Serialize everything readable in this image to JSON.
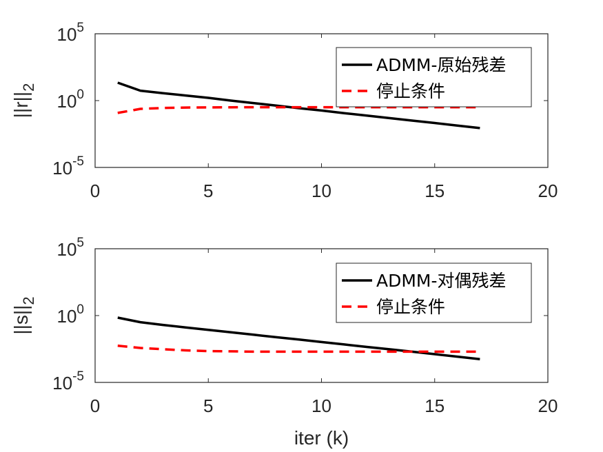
{
  "chart_data": [
    {
      "type": "line",
      "ylabel_main": "||r||",
      "ylabel_sub": "2",
      "xlabel": "",
      "xlim": [
        0,
        20
      ],
      "ylim": [
        1e-05,
        100000.0
      ],
      "yscale": "log",
      "xticks": [
        "0",
        "5",
        "10",
        "15",
        "20"
      ],
      "ytick_base": "10",
      "ytick_exponents": [
        "-5",
        "0",
        "5"
      ],
      "legend_position": "top-right",
      "series": [
        {
          "name": "ADMM-原始残差",
          "color": "#000000",
          "style": "solid",
          "x": [
            1,
            2,
            3,
            4,
            5,
            6,
            7,
            8,
            9,
            10,
            11,
            12,
            13,
            14,
            15,
            16,
            17
          ],
          "y": [
            22,
            5.5,
            3.6,
            2.4,
            1.6,
            1.0,
            0.65,
            0.42,
            0.27,
            0.18,
            0.115,
            0.075,
            0.049,
            0.032,
            0.021,
            0.0135,
            0.0088
          ]
        },
        {
          "name": "停止条件",
          "color": "#ff0000",
          "style": "dashed",
          "x": [
            1,
            2,
            3,
            4,
            5,
            6,
            7,
            8,
            9,
            10,
            11,
            12,
            13,
            14,
            15,
            16,
            17
          ],
          "y": [
            0.12,
            0.24,
            0.28,
            0.3,
            0.31,
            0.315,
            0.32,
            0.32,
            0.32,
            0.32,
            0.32,
            0.32,
            0.32,
            0.32,
            0.32,
            0.32,
            0.32
          ]
        }
      ]
    },
    {
      "type": "line",
      "ylabel_main": "||s||",
      "ylabel_sub": "2",
      "xlabel": "iter (k)",
      "xlim": [
        0,
        20
      ],
      "ylim": [
        1e-05,
        100000.0
      ],
      "yscale": "log",
      "xticks": [
        "0",
        "5",
        "10",
        "15",
        "20"
      ],
      "ytick_base": "10",
      "ytick_exponents": [
        "-5",
        "0",
        "5"
      ],
      "legend_position": "top-right",
      "series": [
        {
          "name": "ADMM-对偶残差",
          "color": "#000000",
          "style": "solid",
          "x": [
            1,
            2,
            3,
            4,
            5,
            6,
            7,
            8,
            9,
            10,
            11,
            12,
            13,
            14,
            15,
            16,
            17
          ],
          "y": [
            0.7,
            0.32,
            0.2,
            0.13,
            0.085,
            0.056,
            0.037,
            0.024,
            0.016,
            0.0105,
            0.0069,
            0.0045,
            0.003,
            0.002,
            0.0013,
            0.00085,
            0.00055
          ]
        },
        {
          "name": "停止条件",
          "color": "#ff0000",
          "style": "dashed",
          "x": [
            1,
            2,
            3,
            4,
            5,
            6,
            7,
            8,
            9,
            10,
            11,
            12,
            13,
            14,
            15,
            16,
            17
          ],
          "y": [
            0.0055,
            0.0038,
            0.003,
            0.0025,
            0.0022,
            0.0021,
            0.002,
            0.002,
            0.002,
            0.002,
            0.002,
            0.002,
            0.002,
            0.002,
            0.002,
            0.002,
            0.002
          ]
        }
      ]
    }
  ]
}
